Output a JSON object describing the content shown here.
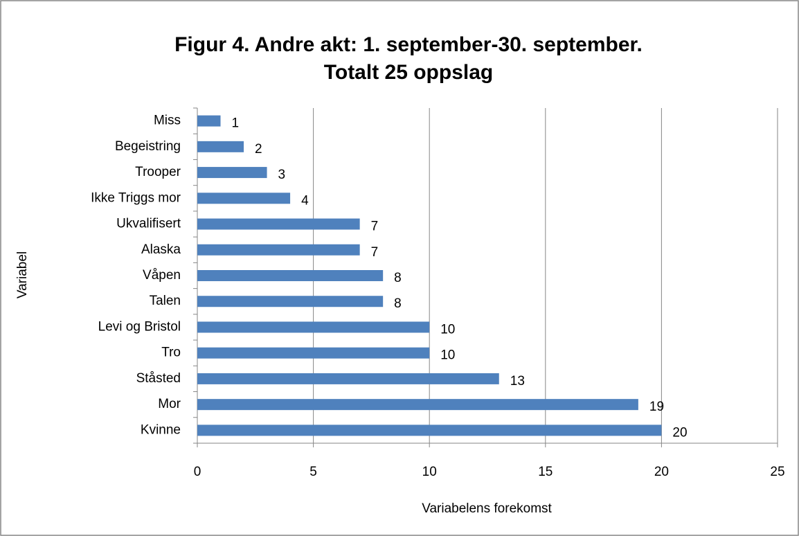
{
  "chart_data": {
    "type": "barh",
    "title": [
      "Figur 4. Andre akt: 1. september-30. september.",
      "Totalt 25 oppslag"
    ],
    "xlabel": "Variabelens forekomst",
    "ylabel": "Variabel",
    "categories": [
      "Miss",
      "Begeistring",
      "Trooper",
      "Ikke Triggs mor",
      "Ukvalifisert",
      "Alaska",
      "Våpen",
      "Talen",
      "Levi og Bristol",
      "Tro",
      "Ståsted",
      "Mor",
      "Kvinne"
    ],
    "values": [
      1,
      2,
      3,
      4,
      7,
      7,
      8,
      8,
      10,
      10,
      13,
      19,
      20
    ],
    "color": "#4f81bd",
    "xlim": [
      0,
      25
    ],
    "xticks": [
      0,
      5,
      10,
      15,
      20,
      25
    ],
    "grid": true
  }
}
